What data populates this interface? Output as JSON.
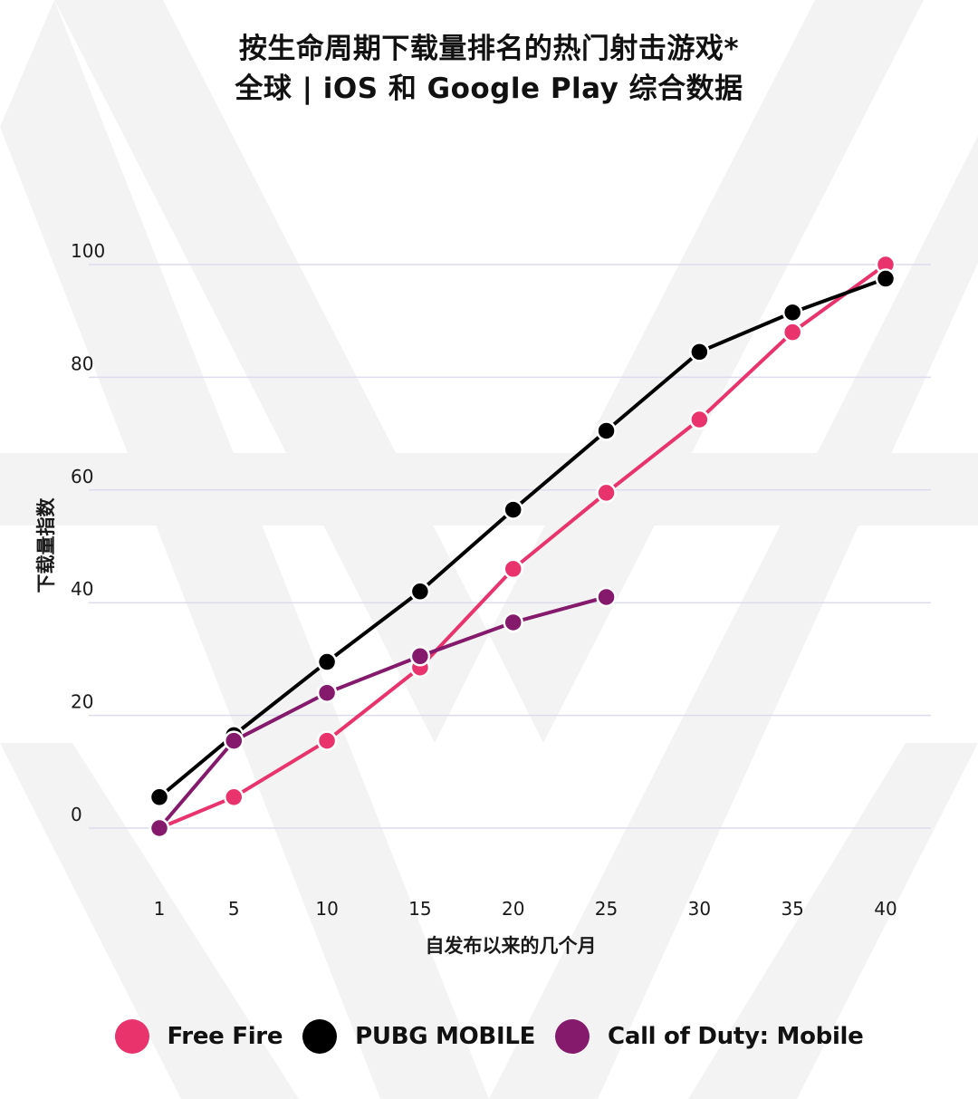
{
  "title_line1": "按生命周期下载量排名的热门射击游戏*",
  "title_line2": "全球 | iOS 和 Google Play 综合数据",
  "colors": {
    "grid": "#dcdcec",
    "axis_text": "#1a1a1a",
    "background_deco": "#f2f2f2"
  },
  "chart_data": {
    "type": "line",
    "xlabel": "自发布以来的几个月",
    "ylabel": "下载量指数",
    "ylim": [
      0,
      100
    ],
    "yticks": [
      0,
      20,
      40,
      60,
      80,
      100
    ],
    "xticks": [
      1,
      5,
      10,
      15,
      20,
      25,
      30,
      35,
      40
    ],
    "x": [
      1,
      5,
      10,
      15,
      20,
      25,
      30,
      35,
      40
    ],
    "grid": true,
    "legend_position": "bottom",
    "series": [
      {
        "name": "Free Fire",
        "color": "#e8336d",
        "values": [
          0,
          5.5,
          15.5,
          28.5,
          46,
          59.5,
          72.5,
          88,
          100
        ]
      },
      {
        "name": "PUBG MOBILE",
        "color": "#000000",
        "values": [
          5.5,
          16.5,
          29.5,
          42,
          56.5,
          70.5,
          84.5,
          91.5,
          97.5
        ]
      },
      {
        "name": "Call of Duty: Mobile",
        "color": "#85196b",
        "values": [
          0,
          15.5,
          24,
          30.5,
          36.5,
          41,
          null,
          null,
          null
        ]
      }
    ]
  }
}
